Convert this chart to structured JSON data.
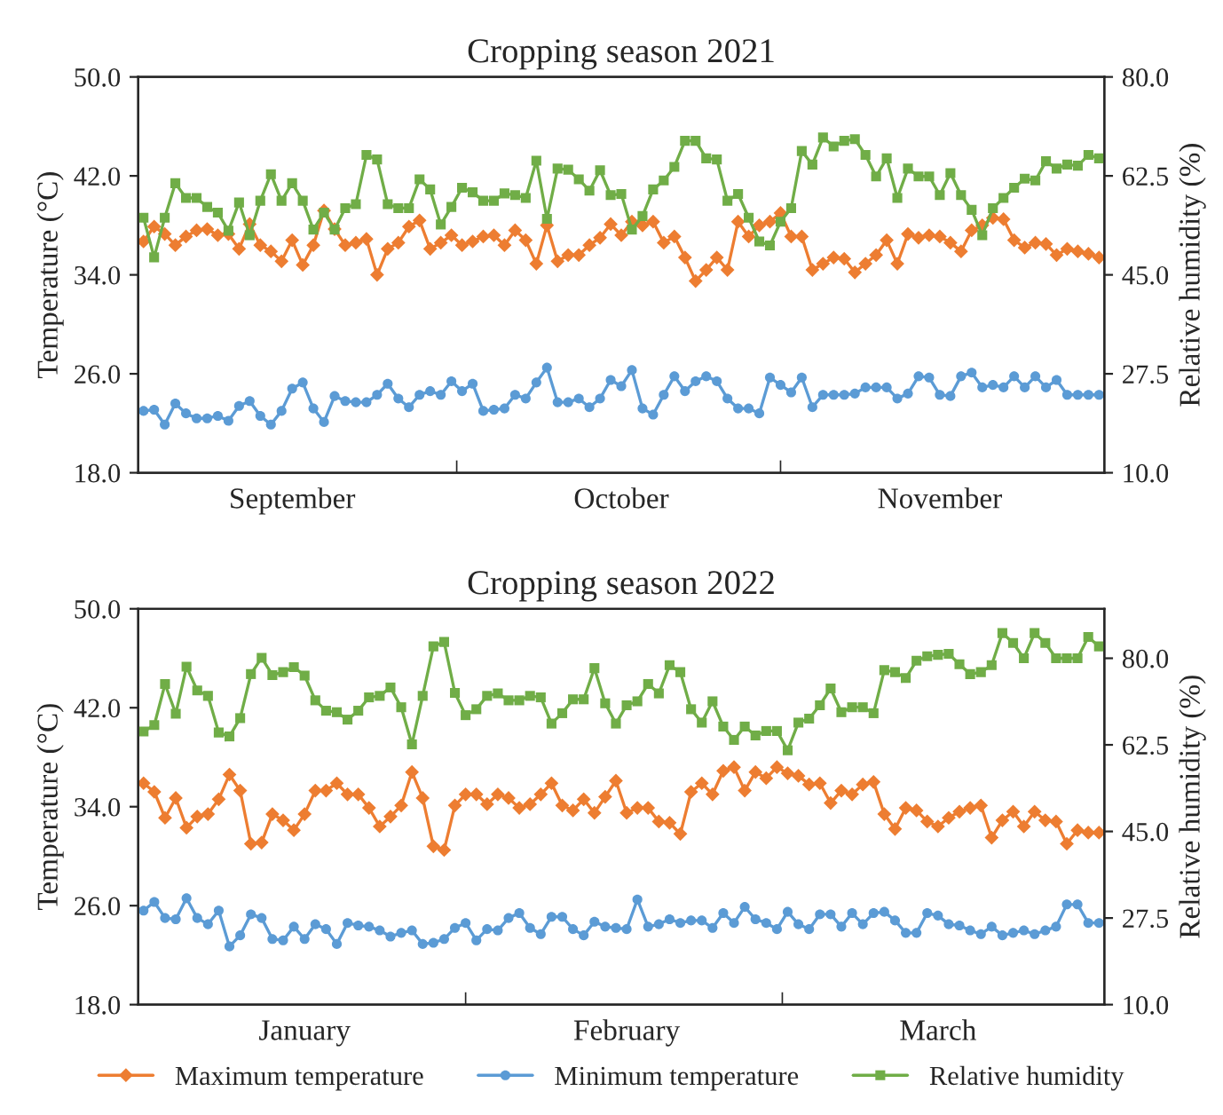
{
  "chart_data": [
    {
      "type": "line",
      "title": "Cropping season 2021",
      "ylabel": "Temperature (°C)",
      "y2label": "Relative humidity (%)",
      "categories": [
        null,
        null,
        null,
        null,
        null,
        null,
        null,
        null,
        null,
        null,
        null,
        null,
        null,
        null,
        "September",
        null,
        null,
        null,
        null,
        null,
        null,
        null,
        null,
        null,
        null,
        null,
        null,
        null,
        null,
        null,
        null,
        null,
        null,
        null,
        null,
        null,
        null,
        null,
        null,
        null,
        null,
        null,
        null,
        null,
        null,
        "October",
        null,
        null,
        null,
        null,
        null,
        null,
        null,
        null,
        null,
        null,
        null,
        null,
        null,
        null,
        null,
        null,
        null,
        null,
        null,
        null,
        null,
        null,
        null,
        null,
        null,
        null,
        null,
        null,
        null,
        "November",
        null,
        null,
        null,
        null,
        null,
        null,
        null,
        null,
        null,
        null,
        null,
        null,
        null,
        null,
        null
      ],
      "ylim": [
        18,
        50
      ],
      "yticks": [
        {
          "value": 18,
          "label": "18.0"
        },
        {
          "value": 26,
          "label": "26.0"
        },
        {
          "value": 34,
          "label": "34.0"
        },
        {
          "value": 42,
          "label": "42.0"
        },
        {
          "value": 50,
          "label": "50.0"
        }
      ],
      "y2lim": [
        10,
        80
      ],
      "y2ticks": [
        {
          "value": 10,
          "label": "10.0"
        },
        {
          "value": 27.5,
          "label": "27.5"
        },
        {
          "value": 45,
          "label": "45.0"
        },
        {
          "value": 62.5,
          "label": "62.5"
        },
        {
          "value": 80,
          "label": "80.0"
        }
      ],
      "legend": false,
      "series": [
        {
          "color": "#ed7d31",
          "marker": "diamond",
          "values": [
            36.7,
            37.9,
            37.3,
            36.4,
            37.1,
            37.6,
            37.7,
            37.2,
            37.3,
            36.1,
            38.1,
            36.4,
            35.9,
            35.1,
            36.8,
            34.8,
            36.4,
            39.2,
            37.7,
            36.4,
            36.6,
            36.9,
            34.0,
            36.1,
            36.6,
            37.9,
            38.4,
            36.1,
            36.6,
            37.2,
            36.4,
            36.7,
            37.1,
            37.2,
            36.4,
            37.6,
            36.8,
            34.9,
            38.0,
            35.1,
            35.6,
            35.6,
            36.4,
            37.0,
            38.1,
            37.2,
            38.3,
            38.0,
            38.3,
            36.6,
            37.1,
            35.4,
            33.5,
            34.4,
            35.4,
            34.4,
            38.3,
            37.1,
            38.0,
            38.3,
            39.0,
            37.1,
            37.1,
            34.4,
            34.9,
            35.4,
            35.3,
            34.2,
            34.9,
            35.6,
            36.8,
            34.9,
            37.3,
            37.0,
            37.2,
            37.1,
            36.6,
            35.9,
            37.6,
            38.0,
            38.6,
            38.5,
            36.8,
            36.2,
            36.6,
            36.5,
            35.6,
            36.1,
            35.9,
            35.7,
            35.4
          ]
        },
        {
          "color": "#5b9bd5",
          "marker": "circle",
          "values": [
            23.0,
            23.1,
            21.9,
            23.6,
            22.8,
            22.4,
            22.4,
            22.6,
            22.2,
            23.4,
            23.8,
            22.6,
            21.9,
            23.0,
            24.8,
            25.3,
            23.2,
            22.1,
            24.2,
            23.8,
            23.7,
            23.7,
            24.3,
            25.2,
            24.0,
            23.3,
            24.3,
            24.6,
            24.3,
            25.4,
            24.6,
            25.2,
            23.0,
            23.1,
            23.2,
            24.3,
            24.0,
            25.3,
            26.5,
            23.7,
            23.7,
            24.0,
            23.3,
            24.0,
            25.5,
            25.0,
            26.3,
            23.2,
            22.7,
            24.3,
            25.8,
            24.6,
            25.4,
            25.8,
            25.4,
            24.0,
            23.2,
            23.2,
            22.8,
            25.7,
            25.1,
            24.5,
            25.7,
            23.3,
            24.3,
            24.3,
            24.3,
            24.4,
            24.9,
            24.9,
            24.9,
            24.0,
            24.4,
            25.8,
            25.7,
            24.3,
            24.2,
            25.8,
            26.1,
            24.9,
            25.1,
            24.9,
            25.8,
            24.9,
            25.8,
            24.9,
            25.5,
            24.3,
            24.3,
            24.3,
            24.3
          ]
        },
        {
          "color": "#70ad47",
          "marker": "square",
          "axis": "y2",
          "values": [
            55.1,
            48.1,
            55.1,
            61.2,
            58.6,
            58.6,
            57.0,
            56.0,
            52.8,
            57.8,
            52.0,
            58.1,
            62.8,
            58.1,
            61.2,
            58.1,
            53.0,
            56.0,
            53.0,
            56.8,
            57.5,
            66.2,
            65.4,
            57.5,
            56.8,
            56.8,
            61.9,
            60.1,
            53.9,
            57.0,
            60.4,
            59.6,
            58.1,
            58.1,
            59.4,
            59.1,
            58.6,
            65.2,
            54.9,
            63.8,
            63.6,
            61.9,
            59.9,
            63.5,
            59.1,
            59.3,
            53.0,
            55.4,
            60.1,
            61.7,
            64.1,
            68.7,
            68.7,
            65.6,
            65.4,
            58.1,
            59.3,
            55.1,
            50.9,
            50.2,
            54.4,
            56.8,
            66.9,
            64.5,
            69.3,
            67.7,
            68.7,
            69.0,
            66.2,
            62.4,
            65.6,
            58.6,
            63.8,
            62.4,
            62.4,
            59.1,
            63.0,
            59.1,
            56.5,
            52.0,
            56.8,
            58.6,
            60.4,
            62.0,
            61.7,
            65.1,
            63.8,
            64.5,
            64.3,
            66.2,
            65.6
          ]
        }
      ]
    },
    {
      "type": "line",
      "title": "Cropping season 2022",
      "ylabel": "Temperature (°C)",
      "y2label": "Relative humidity (%)",
      "categories": [
        null,
        null,
        null,
        null,
        null,
        null,
        null,
        null,
        null,
        null,
        null,
        null,
        null,
        null,
        null,
        "January",
        null,
        null,
        null,
        null,
        null,
        null,
        null,
        null,
        null,
        null,
        null,
        null,
        null,
        null,
        null,
        null,
        null,
        null,
        null,
        null,
        null,
        null,
        null,
        null,
        null,
        null,
        null,
        null,
        null,
        "February",
        null,
        null,
        null,
        null,
        null,
        null,
        null,
        null,
        null,
        null,
        null,
        null,
        null,
        null,
        null,
        null,
        null,
        null,
        null,
        null,
        null,
        null,
        null,
        null,
        null,
        null,
        null,
        null,
        "March",
        null,
        null,
        null,
        null,
        null,
        null,
        null,
        null,
        null,
        null,
        null,
        null,
        null,
        null,
        null
      ],
      "ylim": [
        18,
        50
      ],
      "yticks": [
        {
          "value": 18,
          "label": "18.0"
        },
        {
          "value": 26,
          "label": "26.0"
        },
        {
          "value": 34,
          "label": "34.0"
        },
        {
          "value": 42,
          "label": "42.0"
        },
        {
          "value": 50,
          "label": "50.0"
        }
      ],
      "y2lim": [
        10,
        90
      ],
      "y2ticks": [
        {
          "value": 10,
          "label": "10.0"
        },
        {
          "value": 27.5,
          "label": "27.5"
        },
        {
          "value": 45,
          "label": "45.0"
        },
        {
          "value": 62.5,
          "label": "62.5"
        },
        {
          "value": 80,
          "label": "80.0"
        }
      ],
      "legend": "bottom",
      "series": [
        {
          "name": "Maximum temperature",
          "color": "#ed7d31",
          "marker": "diamond",
          "values": [
            35.9,
            35.2,
            33.1,
            34.7,
            32.3,
            33.2,
            33.4,
            34.6,
            36.6,
            35.3,
            31.0,
            31.1,
            33.4,
            32.9,
            32.1,
            33.4,
            35.3,
            35.3,
            35.9,
            35.0,
            35.0,
            33.9,
            32.4,
            33.2,
            34.1,
            36.8,
            34.7,
            30.8,
            30.5,
            34.1,
            35.0,
            35.0,
            34.2,
            35.0,
            34.7,
            33.9,
            34.2,
            35.0,
            35.9,
            34.1,
            33.7,
            34.6,
            33.5,
            34.8,
            36.1,
            33.5,
            33.9,
            33.9,
            32.8,
            32.7,
            31.8,
            35.2,
            35.9,
            35.0,
            36.9,
            37.2,
            35.3,
            36.8,
            36.3,
            37.2,
            36.7,
            36.5,
            35.8,
            35.9,
            34.3,
            35.3,
            35.0,
            35.8,
            36.0,
            33.4,
            32.2,
            33.9,
            33.7,
            32.8,
            32.4,
            33.1,
            33.6,
            33.9,
            34.1,
            31.5,
            32.9,
            33.6,
            32.4,
            33.6,
            32.9,
            32.8,
            31.0,
            32.1,
            31.9,
            31.9
          ]
        },
        {
          "name": "Minimum temperature",
          "color": "#5b9bd5",
          "marker": "circle",
          "values": [
            25.6,
            26.3,
            25.0,
            24.9,
            26.6,
            25.0,
            24.5,
            25.6,
            22.7,
            23.6,
            25.3,
            25.0,
            23.3,
            23.2,
            24.3,
            23.3,
            24.5,
            24.1,
            22.9,
            24.6,
            24.4,
            24.3,
            24.0,
            23.5,
            23.8,
            24.0,
            22.9,
            23.0,
            23.3,
            24.2,
            24.6,
            23.2,
            24.1,
            24.0,
            25.0,
            25.4,
            24.2,
            23.7,
            25.1,
            25.1,
            24.1,
            23.6,
            24.7,
            24.3,
            24.2,
            24.1,
            26.5,
            24.3,
            24.5,
            24.9,
            24.6,
            24.8,
            24.8,
            24.2,
            25.4,
            24.6,
            25.9,
            24.9,
            24.6,
            24.1,
            25.5,
            24.5,
            24.1,
            25.3,
            25.3,
            24.3,
            25.4,
            24.5,
            25.4,
            25.5,
            24.8,
            23.8,
            23.8,
            25.4,
            25.2,
            24.5,
            24.4,
            24.0,
            23.7,
            24.3,
            23.6,
            23.8,
            24.0,
            23.7,
            24.0,
            24.3,
            26.1,
            26.1,
            24.6,
            24.6
          ]
        },
        {
          "name": "Relative humidity",
          "color": "#70ad47",
          "marker": "square",
          "axis": "y2",
          "values": [
            65.2,
            66.5,
            74.8,
            68.8,
            78.3,
            73.5,
            72.4,
            65.0,
            64.2,
            67.9,
            76.8,
            80.1,
            76.6,
            77.2,
            78.2,
            76.5,
            71.5,
            69.4,
            69.1,
            67.6,
            69.4,
            72.1,
            72.4,
            74.1,
            70.1,
            62.6,
            72.4,
            82.4,
            83.3,
            73.0,
            68.5,
            69.7,
            72.4,
            72.9,
            71.5,
            71.5,
            72.4,
            72.1,
            66.8,
            68.9,
            71.7,
            71.7,
            78.0,
            70.9,
            66.8,
            70.5,
            71.3,
            74.8,
            72.9,
            78.6,
            77.2,
            69.7,
            67.0,
            71.3,
            66.2,
            63.5,
            66.2,
            64.4,
            65.3,
            65.3,
            61.4,
            67.0,
            67.8,
            70.5,
            73.9,
            69.1,
            70.1,
            70.1,
            68.9,
            77.6,
            77.2,
            76.0,
            79.5,
            80.4,
            80.7,
            80.9,
            78.8,
            76.8,
            77.2,
            78.6,
            85.1,
            83.1,
            80.0,
            85.1,
            83.1,
            80.0,
            80.0,
            80.0,
            84.3,
            82.4
          ]
        }
      ]
    }
  ]
}
